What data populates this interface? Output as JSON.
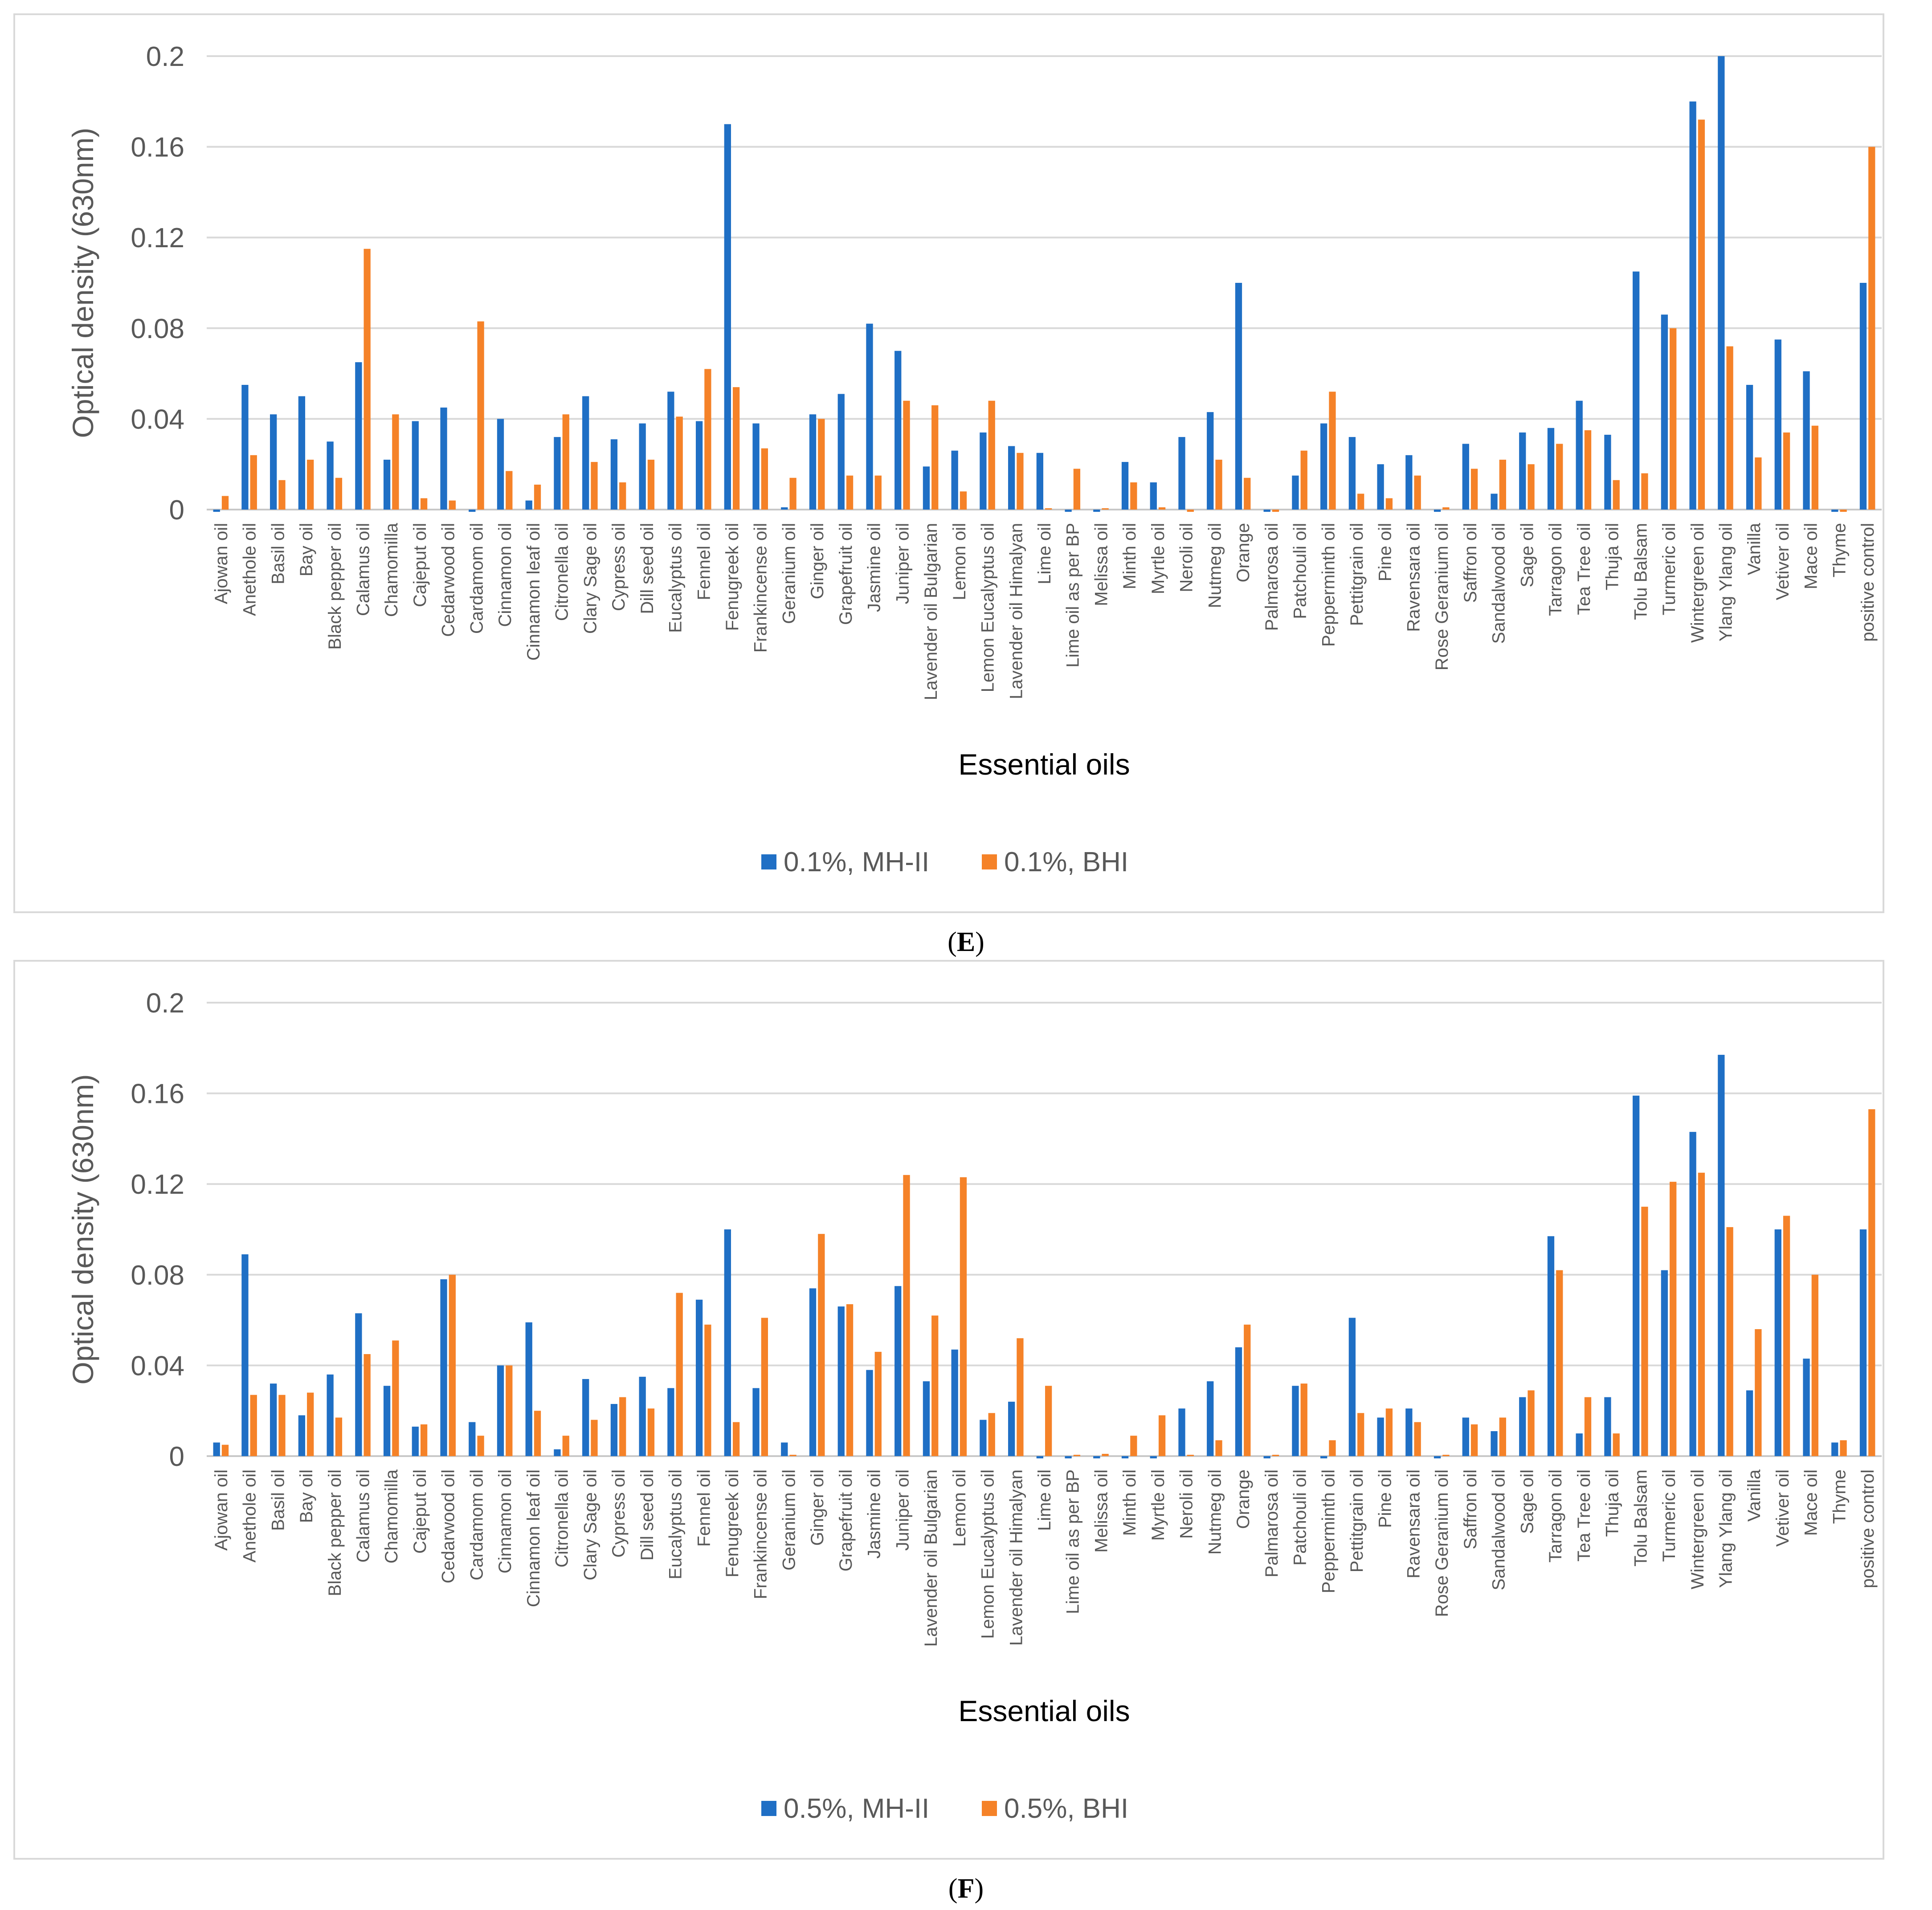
{
  "chart_data": [
    {
      "type": "bar",
      "panel_label": "E",
      "caption_open": "(",
      "caption_close": ")",
      "xlabel": "Essential oils",
      "ylabel": "Optical density (630nm)",
      "ylim": [
        0,
        0.2
      ],
      "yticks": [
        "0",
        "0.04",
        "0.08",
        "0.12",
        "0.16",
        "0.2"
      ],
      "grid": true,
      "legend_position": "bottom-center",
      "colors": [
        "#1f6fc5",
        "#f58228"
      ],
      "categories": [
        "Ajowan oil",
        "Anethole oil",
        "Basil oil",
        "Bay oil",
        "Black pepper oil",
        "Calamus oil",
        "Chamomilla",
        "Cajeput oil",
        "Cedarwood oil",
        "Cardamom oil",
        "Cinnamon oil",
        "Cinnamon leaf oil",
        "Citronella oil",
        "Clary Sage oil",
        "Cypress oil",
        "Dill seed oil",
        "Eucalyptus oil",
        "Fennel oil",
        "Fenugreek oil",
        "Frankincense oil",
        "Geranium oil",
        "Ginger oil",
        "Grapefruit oil",
        "Jasmine oil",
        "Juniper oil",
        "Lavender oil Bulgarian",
        "Lemon oil",
        "Lemon Eucalyptus oil",
        "Lavender oil Himalyan",
        "Lime oil",
        "Lime oil as per BP",
        "Melissa oil",
        "Minth oil",
        "Myrtle oil",
        "Neroli oil",
        "Nutmeg oil",
        "Orange",
        "Palmarosa oil",
        "Patchouli oil",
        "Pepperminth oil",
        "Pettitgrain oil",
        "Pine oil",
        "Ravensara oil",
        "Rose Geranium oil",
        "Saffron oil",
        "Sandalwood oil",
        "Sage oil",
        "Tarragon oil",
        "Tea Tree oil",
        "Thuja oil",
        "Tolu Balsam",
        "Turmeric oil",
        "Wintergreen oil",
        "Ylang Ylang oil",
        "Vanilla",
        "Vetiver oil",
        "Mace oil",
        "Thyme",
        "positive control"
      ],
      "series": [
        {
          "name": "0.1%, MH-II",
          "values": [
            -0.001,
            0.055,
            0.042,
            0.05,
            0.03,
            0.065,
            0.022,
            0.039,
            0.045,
            -0.001,
            0.04,
            0.004,
            0.032,
            0.05,
            0.031,
            0.038,
            0.052,
            0.039,
            0.17,
            0.038,
            0.001,
            0.042,
            0.051,
            0.082,
            0.07,
            0.019,
            0.026,
            0.034,
            0.028,
            0.025,
            -0.001,
            -0.001,
            0.021,
            0.012,
            0.032,
            0.043,
            0.1,
            -0.001,
            0.015,
            0.038,
            0.032,
            0.02,
            0.024,
            -0.001,
            0.029,
            0.007,
            0.034,
            0.036,
            0.048,
            0.033,
            0.105,
            0.086,
            0.18,
            0.2,
            0.055,
            0.075,
            0.061,
            -0.001,
            0.1
          ]
        },
        {
          "name": "0.1%, BHI",
          "values": [
            0.006,
            0.024,
            0.013,
            0.022,
            0.014,
            0.115,
            0.042,
            0.005,
            0.004,
            0.083,
            0.017,
            0.011,
            0.042,
            0.021,
            0.012,
            0.022,
            0.041,
            0.062,
            0.054,
            0.027,
            0.014,
            0.04,
            0.015,
            0.015,
            0.048,
            0.046,
            0.008,
            0.048,
            0.025,
            0.0,
            0.018,
            0.0,
            0.012,
            0.001,
            -0.001,
            0.022,
            0.014,
            -0.001,
            0.026,
            0.052,
            0.007,
            0.005,
            0.015,
            0.001,
            0.018,
            0.022,
            0.02,
            0.029,
            0.035,
            0.013,
            0.016,
            0.08,
            0.172,
            0.072,
            0.023,
            0.034,
            0.037,
            -0.001,
            0.16
          ]
        }
      ]
    },
    {
      "type": "bar",
      "panel_label": "F",
      "caption_open": "(",
      "caption_close": ")",
      "xlabel": "Essential oils",
      "ylabel": "Optical density (630nm)",
      "ylim": [
        0,
        0.2
      ],
      "yticks": [
        "0",
        "0.04",
        "0.08",
        "0.12",
        "0.16",
        "0.2"
      ],
      "grid": true,
      "legend_position": "bottom-center",
      "colors": [
        "#1f6fc5",
        "#f58228"
      ],
      "categories": [
        "Ajowan oil",
        "Anethole oil",
        "Basil oil",
        "Bay oil",
        "Black pepper oil",
        "Calamus oil",
        "Chamomilla",
        "Cajeput oil",
        "Cedarwood oil",
        "Cardamom oil",
        "Cinnamon oil",
        "Cinnamon leaf oil",
        "Citronella oil",
        "Clary Sage oil",
        "Cypress oil",
        "Dill seed oil",
        "Eucalyptus oil",
        "Fennel oil",
        "Fenugreek oil",
        "Frankincense oil",
        "Geranium oil",
        "Ginger oil",
        "Grapefruit oil",
        "Jasmine oil",
        "Juniper oil",
        "Lavender oil Bulgarian",
        "Lemon oil",
        "Lemon Eucalyptus oil",
        "Lavender oil Himalyan",
        "Lime oil",
        "Lime oil as per BP",
        "Melissa oil",
        "Minth oil",
        "Myrtle oil",
        "Neroli oil",
        "Nutmeg oil",
        "Orange",
        "Palmarosa oil",
        "Patchouli oil",
        "Pepperminth oil",
        "Pettitgrain oil",
        "Pine oil",
        "Ravensara oil",
        "Rose Geranium oil",
        "Saffron oil",
        "Sandalwood oil",
        "Sage oil",
        "Tarragon oil",
        "Tea Tree oil",
        "Thuja oil",
        "Tolu Balsam",
        "Turmeric oil",
        "Wintergreen oil",
        "Ylang Ylang oil",
        "Vanilla",
        "Vetiver oil",
        "Mace oil",
        "Thyme",
        "positive control"
      ],
      "series": [
        {
          "name": "0.5%, MH-II",
          "values": [
            0.006,
            0.089,
            0.032,
            0.018,
            0.036,
            0.063,
            0.031,
            0.013,
            0.078,
            0.015,
            0.04,
            0.059,
            0.003,
            0.034,
            0.023,
            0.035,
            0.03,
            0.069,
            0.1,
            0.03,
            0.006,
            0.074,
            0.066,
            0.038,
            0.075,
            0.033,
            0.047,
            0.016,
            0.024,
            -0.001,
            -0.001,
            -0.001,
            -0.001,
            -0.001,
            0.021,
            0.033,
            0.048,
            -0.001,
            0.031,
            -0.001,
            0.061,
            0.017,
            0.021,
            -0.001,
            0.017,
            0.011,
            0.026,
            0.097,
            0.01,
            0.026,
            0.159,
            0.082,
            0.143,
            0.177,
            0.029,
            0.1,
            0.043,
            0.006,
            0.1
          ]
        },
        {
          "name": "0.5%, BHI",
          "values": [
            0.005,
            0.027,
            0.027,
            0.028,
            0.017,
            0.045,
            0.051,
            0.014,
            0.08,
            0.009,
            0.04,
            0.02,
            0.009,
            0.016,
            0.026,
            0.021,
            0.072,
            0.058,
            0.015,
            0.061,
            0.0,
            0.098,
            0.067,
            0.046,
            0.124,
            0.062,
            0.123,
            0.019,
            0.052,
            0.031,
            0.0,
            0.001,
            0.009,
            0.018,
            0.0,
            0.007,
            0.058,
            0.0,
            0.032,
            0.007,
            0.019,
            0.021,
            0.015,
            0.0,
            0.014,
            0.017,
            0.029,
            0.082,
            0.026,
            0.01,
            0.11,
            0.121,
            0.125,
            0.101,
            0.056,
            0.106,
            0.08,
            0.007,
            0.153
          ]
        }
      ]
    }
  ]
}
